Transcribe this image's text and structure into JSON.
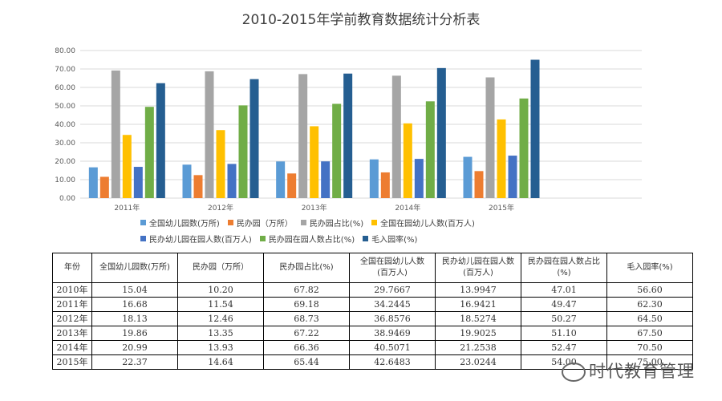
{
  "chart_data": {
    "type": "bar",
    "title": "2010-2015年学前教育数据统计分析表",
    "xlabel": "",
    "ylabel": "",
    "ylim": [
      0,
      80
    ],
    "yticks": [
      "0.00",
      "10.00",
      "20.00",
      "30.00",
      "40.00",
      "50.00",
      "60.00",
      "70.00",
      "80.00"
    ],
    "grid": true,
    "legend_position": "bottom",
    "categories": [
      "2011年",
      "2012年",
      "2013年",
      "2014年",
      "2015年"
    ],
    "series": [
      {
        "name": "全国幼儿园数(万所)",
        "color": "#5b9bd5",
        "values": [
          16.68,
          18.13,
          19.86,
          20.99,
          22.37
        ]
      },
      {
        "name": "民办园（万所）",
        "color": "#ed7d31",
        "values": [
          11.54,
          12.46,
          13.35,
          13.93,
          14.64
        ]
      },
      {
        "name": "民办园占比(%)",
        "color": "#a5a5a5",
        "values": [
          69.18,
          68.73,
          67.22,
          66.36,
          65.44
        ]
      },
      {
        "name": "全国在园幼儿人数(百万人)",
        "color": "#ffc000",
        "values": [
          34.2445,
          36.8576,
          38.9469,
          40.5071,
          42.6483
        ]
      },
      {
        "name": "民办幼儿园在园人数(百万人)",
        "color": "#4472c4",
        "values": [
          16.9421,
          18.5274,
          19.9025,
          21.2538,
          23.0244
        ]
      },
      {
        "name": "民办园在园人数占比(%)",
        "color": "#70ad47",
        "values": [
          49.47,
          50.27,
          51.1,
          52.47,
          54.0
        ]
      },
      {
        "name": "毛入园率(%)",
        "color": "#255e91",
        "values": [
          62.3,
          64.5,
          67.5,
          70.5,
          75.0
        ]
      }
    ]
  },
  "table": {
    "headers": [
      [
        "年份"
      ],
      [
        "全国幼儿园数(万所)"
      ],
      [
        "民办园（万所）"
      ],
      [
        "民办园占比(%)"
      ],
      [
        "全国在园幼儿人数",
        "(百万人)"
      ],
      [
        "民办幼儿园在园人数",
        "(百万人)"
      ],
      [
        "民办园在园人数占比",
        "(%)"
      ],
      [
        "毛入园率(%)"
      ]
    ],
    "rows": [
      [
        "2010年",
        "15.04",
        "10.20",
        "67.82",
        "29.7667",
        "13.9947",
        "47.01",
        "56.60"
      ],
      [
        "2011年",
        "16.68",
        "11.54",
        "69.18",
        "34.2445",
        "16.9421",
        "49.47",
        "62.30"
      ],
      [
        "2012年",
        "18.13",
        "12.46",
        "68.73",
        "36.8576",
        "18.5274",
        "50.27",
        "64.50"
      ],
      [
        "2013年",
        "19.86",
        "13.35",
        "67.22",
        "38.9469",
        "19.9025",
        "51.10",
        "67.50"
      ],
      [
        "2014年",
        "20.99",
        "13.93",
        "66.36",
        "40.5071",
        "21.2538",
        "52.47",
        "70.50"
      ],
      [
        "2015年",
        "22.37",
        "14.64",
        "65.44",
        "42.6483",
        "23.0244",
        "54.00",
        "75.00"
      ]
    ]
  },
  "watermark": {
    "text": "时代教育管理",
    "icon": "wechat-icon"
  }
}
